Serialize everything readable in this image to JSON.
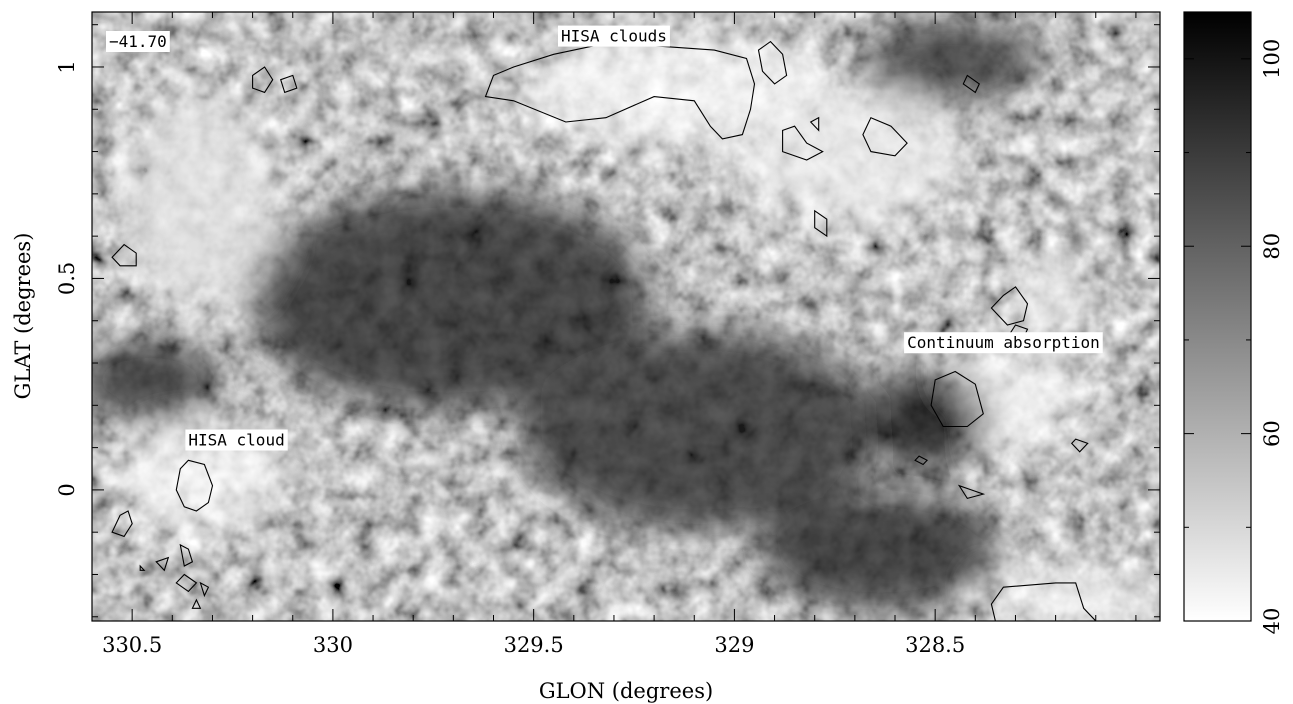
{
  "chart_data": {
    "type": "heatmap",
    "xlabel": "GLON (degrees)",
    "ylabel": "GLAT (degrees)",
    "xlim": [
      330.6,
      327.94
    ],
    "ylim": [
      -0.31,
      1.13
    ],
    "x_ticks": [
      {
        "value": 330.5,
        "label": "330.5"
      },
      {
        "value": 330.0,
        "label": "330"
      },
      {
        "value": 329.5,
        "label": "329.5"
      },
      {
        "value": 329.0,
        "label": "329"
      },
      {
        "value": 328.5,
        "label": "328.5"
      }
    ],
    "y_ticks": [
      {
        "value": 0.0,
        "label": "0"
      },
      {
        "value": 0.5,
        "label": "0.5"
      },
      {
        "value": 1.0,
        "label": "1"
      }
    ],
    "colorbar": {
      "min": 40,
      "max": 105,
      "colormap": "grayscale (white=low, black=high)",
      "ticks": [
        {
          "value": 40,
          "label": "40"
        },
        {
          "value": 60,
          "label": "60"
        },
        {
          "value": 80,
          "label": "80"
        },
        {
          "value": 100,
          "label": "100"
        }
      ]
    },
    "velocity_label": "−41.70",
    "annotations": [
      {
        "text": "HISA clouds",
        "x": 329.3,
        "y": 1.06
      },
      {
        "text": "HISA cloud",
        "x": 330.24,
        "y": 0.105
      },
      {
        "text": "Continuum absorption",
        "x": 328.33,
        "y": 0.335
      }
    ],
    "contours": [
      {
        "name": "hisa-clouds-main",
        "points": [
          [
            329.62,
            0.93
          ],
          [
            329.6,
            0.98
          ],
          [
            329.55,
            1.0
          ],
          [
            329.45,
            1.03
          ],
          [
            329.35,
            1.05
          ],
          [
            329.2,
            1.05
          ],
          [
            329.05,
            1.04
          ],
          [
            328.97,
            1.02
          ],
          [
            328.95,
            0.96
          ],
          [
            328.96,
            0.9
          ],
          [
            328.98,
            0.84
          ],
          [
            329.03,
            0.83
          ],
          [
            329.06,
            0.86
          ],
          [
            329.1,
            0.92
          ],
          [
            329.2,
            0.93
          ],
          [
            329.32,
            0.88
          ],
          [
            329.42,
            0.87
          ],
          [
            329.55,
            0.92
          ],
          [
            329.62,
            0.93
          ]
        ]
      },
      {
        "name": "contour-a",
        "points": [
          [
            330.2,
            0.98
          ],
          [
            330.17,
            1.0
          ],
          [
            330.15,
            0.97
          ],
          [
            330.17,
            0.94
          ],
          [
            330.2,
            0.95
          ],
          [
            330.2,
            0.98
          ]
        ]
      },
      {
        "name": "contour-b",
        "points": [
          [
            330.13,
            0.97
          ],
          [
            330.1,
            0.98
          ],
          [
            330.09,
            0.95
          ],
          [
            330.12,
            0.94
          ],
          [
            330.13,
            0.97
          ]
        ]
      },
      {
        "name": "contour-c",
        "points": [
          [
            328.94,
            1.04
          ],
          [
            328.91,
            1.06
          ],
          [
            328.88,
            1.03
          ],
          [
            328.87,
            0.98
          ],
          [
            328.9,
            0.96
          ],
          [
            328.93,
            0.99
          ],
          [
            328.94,
            1.04
          ]
        ]
      },
      {
        "name": "contour-d",
        "points": [
          [
            328.88,
            0.85
          ],
          [
            328.85,
            0.86
          ],
          [
            328.82,
            0.82
          ],
          [
            328.78,
            0.8
          ],
          [
            328.82,
            0.78
          ],
          [
            328.88,
            0.8
          ],
          [
            328.88,
            0.85
          ]
        ]
      },
      {
        "name": "contour-e",
        "points": [
          [
            328.81,
            0.87
          ],
          [
            328.79,
            0.88
          ],
          [
            328.79,
            0.85
          ],
          [
            328.81,
            0.87
          ]
        ]
      },
      {
        "name": "contour-f",
        "points": [
          [
            328.66,
            0.88
          ],
          [
            328.61,
            0.86
          ],
          [
            328.57,
            0.82
          ],
          [
            328.6,
            0.79
          ],
          [
            328.66,
            0.8
          ],
          [
            328.68,
            0.84
          ],
          [
            328.66,
            0.88
          ]
        ]
      },
      {
        "name": "contour-g",
        "points": [
          [
            328.42,
            0.98
          ],
          [
            328.39,
            0.96
          ],
          [
            328.4,
            0.94
          ],
          [
            328.43,
            0.96
          ],
          [
            328.42,
            0.98
          ]
        ]
      },
      {
        "name": "contour-h",
        "points": [
          [
            328.8,
            0.66
          ],
          [
            328.77,
            0.64
          ],
          [
            328.77,
            0.6
          ],
          [
            328.8,
            0.62
          ],
          [
            328.8,
            0.66
          ]
        ]
      },
      {
        "name": "contour-i",
        "points": [
          [
            330.52,
            0.58
          ],
          [
            330.49,
            0.56
          ],
          [
            330.49,
            0.53
          ],
          [
            330.53,
            0.53
          ],
          [
            330.55,
            0.55
          ],
          [
            330.52,
            0.58
          ]
        ]
      },
      {
        "name": "contour-continuum-upper",
        "points": [
          [
            328.3,
            0.48
          ],
          [
            328.33,
            0.46
          ],
          [
            328.36,
            0.43
          ],
          [
            328.32,
            0.39
          ],
          [
            328.28,
            0.4
          ],
          [
            328.27,
            0.44
          ],
          [
            328.3,
            0.48
          ]
        ]
      },
      {
        "name": "contour-continuum-lower",
        "points": [
          [
            328.3,
            0.39
          ],
          [
            328.27,
            0.38
          ],
          [
            328.28,
            0.36
          ],
          [
            328.32,
            0.36
          ],
          [
            328.3,
            0.39
          ]
        ]
      },
      {
        "name": "contour-continuum-main",
        "points": [
          [
            328.45,
            0.28
          ],
          [
            328.5,
            0.26
          ],
          [
            328.51,
            0.2
          ],
          [
            328.48,
            0.15
          ],
          [
            328.42,
            0.15
          ],
          [
            328.38,
            0.18
          ],
          [
            328.4,
            0.25
          ],
          [
            328.45,
            0.28
          ]
        ]
      },
      {
        "name": "contour-j",
        "points": [
          [
            328.15,
            0.12
          ],
          [
            328.12,
            0.11
          ],
          [
            328.14,
            0.09
          ],
          [
            328.16,
            0.11
          ],
          [
            328.15,
            0.12
          ]
        ]
      },
      {
        "name": "contour-k",
        "points": [
          [
            328.54,
            0.08
          ],
          [
            328.52,
            0.07
          ],
          [
            328.53,
            0.06
          ],
          [
            328.55,
            0.07
          ],
          [
            328.54,
            0.08
          ]
        ]
      },
      {
        "name": "contour-l",
        "points": [
          [
            328.44,
            0.01
          ],
          [
            328.41,
            0.0
          ],
          [
            328.38,
            -0.01
          ],
          [
            328.42,
            -0.02
          ],
          [
            328.44,
            0.01
          ]
        ]
      },
      {
        "name": "contour-hisa-cloud",
        "points": [
          [
            330.36,
            0.07
          ],
          [
            330.32,
            0.06
          ],
          [
            330.3,
            0.01
          ],
          [
            330.31,
            -0.03
          ],
          [
            330.34,
            -0.05
          ],
          [
            330.37,
            -0.04
          ],
          [
            330.39,
            0.0
          ],
          [
            330.38,
            0.05
          ],
          [
            330.36,
            0.07
          ]
        ]
      },
      {
        "name": "contour-m",
        "points": [
          [
            330.51,
            -0.05
          ],
          [
            330.53,
            -0.06
          ],
          [
            330.55,
            -0.1
          ],
          [
            330.52,
            -0.11
          ],
          [
            330.5,
            -0.08
          ],
          [
            330.51,
            -0.05
          ]
        ]
      },
      {
        "name": "contour-n",
        "points": [
          [
            330.38,
            -0.13
          ],
          [
            330.36,
            -0.14
          ],
          [
            330.35,
            -0.17
          ],
          [
            330.37,
            -0.18
          ],
          [
            330.38,
            -0.13
          ]
        ]
      },
      {
        "name": "contour-o",
        "points": [
          [
            330.44,
            -0.17
          ],
          [
            330.41,
            -0.16
          ],
          [
            330.42,
            -0.19
          ],
          [
            330.44,
            -0.17
          ]
        ]
      },
      {
        "name": "contour-p",
        "points": [
          [
            330.37,
            -0.2
          ],
          [
            330.34,
            -0.22
          ],
          [
            330.36,
            -0.24
          ],
          [
            330.39,
            -0.22
          ],
          [
            330.37,
            -0.2
          ]
        ]
      },
      {
        "name": "contour-q",
        "points": [
          [
            330.33,
            -0.22
          ],
          [
            330.31,
            -0.23
          ],
          [
            330.32,
            -0.25
          ],
          [
            330.33,
            -0.22
          ]
        ]
      },
      {
        "name": "contour-r",
        "points": [
          [
            330.34,
            -0.26
          ],
          [
            330.33,
            -0.28
          ],
          [
            330.35,
            -0.28
          ],
          [
            330.34,
            -0.26
          ]
        ]
      },
      {
        "name": "contour-s",
        "points": [
          [
            330.48,
            -0.18
          ],
          [
            330.47,
            -0.19
          ],
          [
            330.48,
            -0.19
          ],
          [
            330.48,
            -0.18
          ]
        ]
      },
      {
        "name": "contour-bottom-right",
        "points": [
          [
            328.33,
            -0.23
          ],
          [
            328.2,
            -0.22
          ],
          [
            328.15,
            -0.22
          ],
          [
            328.13,
            -0.28
          ],
          [
            328.1,
            -0.31
          ],
          [
            328.35,
            -0.31
          ],
          [
            328.36,
            -0.27
          ],
          [
            328.33,
            -0.23
          ]
        ]
      }
    ]
  }
}
